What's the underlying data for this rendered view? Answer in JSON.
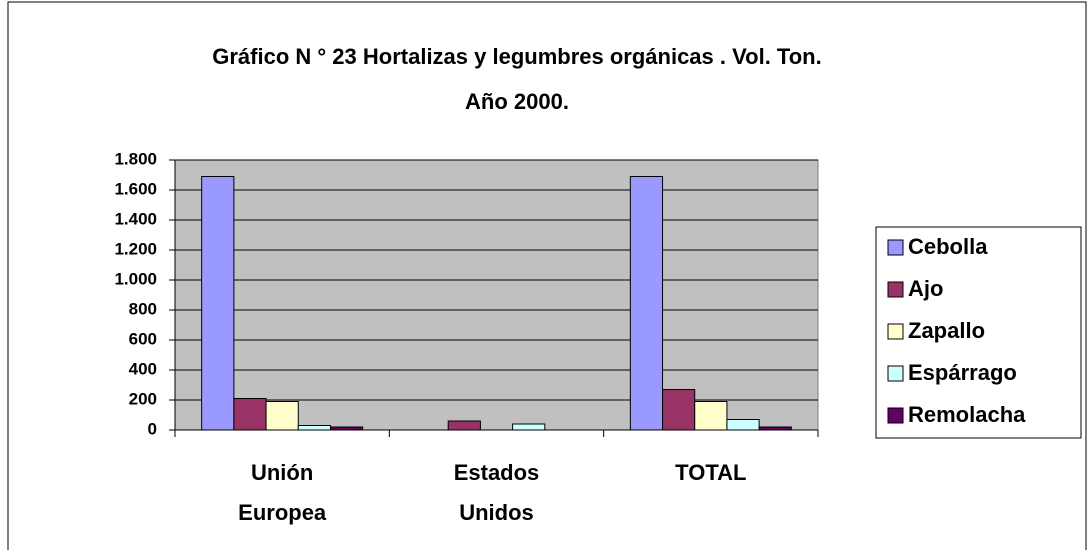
{
  "chart_data": {
    "type": "bar",
    "title": "Gráfico N ° 23 Hortalizas y legumbres orgánicas . Vol. Ton. Año 2000.",
    "categories": [
      "Unión Europea",
      "Estados Unidos",
      "TOTAL"
    ],
    "series": [
      {
        "name": "Cebolla",
        "color": "#9999ff",
        "values": [
          1690,
          0,
          1690
        ]
      },
      {
        "name": "Ajo",
        "color": "#993366",
        "values": [
          210,
          60,
          270
        ]
      },
      {
        "name": "Zapallo",
        "color": "#ffffcc",
        "values": [
          190,
          0,
          190
        ]
      },
      {
        "name": "Espárrago",
        "color": "#ccffff",
        "values": [
          30,
          40,
          70
        ]
      },
      {
        "name": "Remolacha",
        "color": "#660066",
        "values": [
          20,
          0,
          20
        ]
      }
    ],
    "ylim": [
      0,
      1800
    ],
    "yticks": [
      0,
      200,
      400,
      600,
      800,
      {
        "value": 1000,
        "label": "1.000"
      },
      {
        "value": 1200,
        "label": "1.200"
      },
      {
        "value": 1400,
        "label": "1.400"
      },
      {
        "value": 1600,
        "label": "1.600"
      },
      {
        "value": 1800,
        "label": "1.800"
      }
    ],
    "grid": true,
    "legend": "right"
  }
}
